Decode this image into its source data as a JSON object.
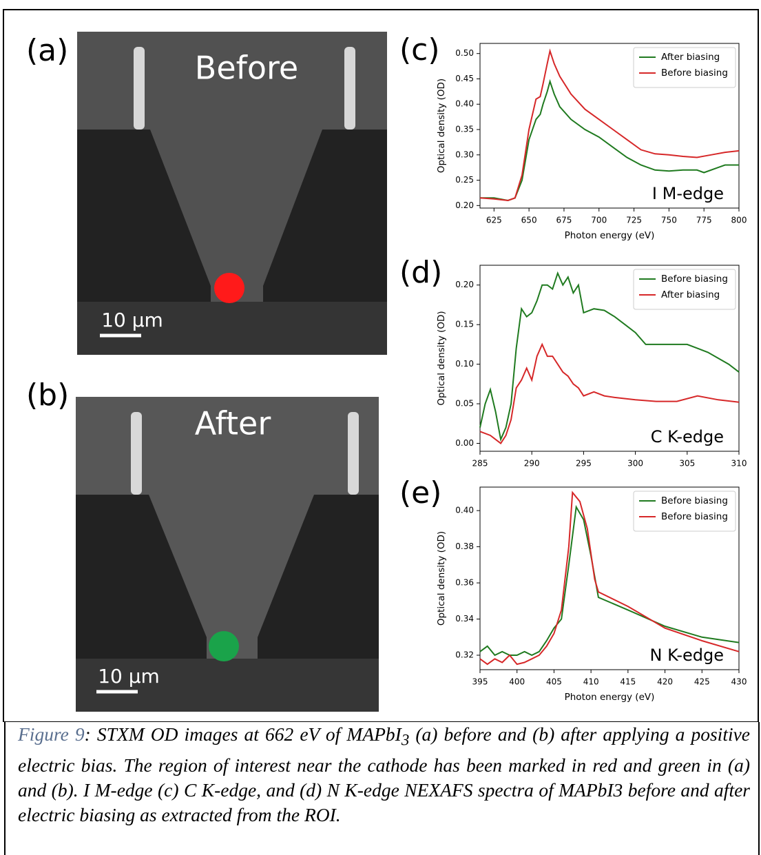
{
  "images": [
    {
      "panel_label": "(a)",
      "title": "Before",
      "scale": "10 µm"
    },
    {
      "panel_label": "(b)",
      "title": "After",
      "scale": "10 µm"
    }
  ],
  "chart_data": [
    {
      "type": "line",
      "panel_label": "(c)",
      "annotation": "I M-edge",
      "x_label": "Photon energy (eV)",
      "y_label": "Optical density (OD)",
      "xlim": [
        615,
        800
      ],
      "xticks": [
        625,
        650,
        675,
        700,
        725,
        750,
        775,
        800
      ],
      "ylim": [
        0.195,
        0.52
      ],
      "yticks": [
        {
          "value": 0.2,
          "label": "0.20"
        },
        0.25,
        {
          "value": 0.3,
          "label": "0.30"
        },
        0.35,
        {
          "value": 0.4,
          "label": "0.40"
        },
        0.45,
        {
          "value": 0.5,
          "label": "0.50"
        }
      ],
      "series": [
        {
          "name": "After biasing",
          "color": "#1f7a1f",
          "x": [
            615,
            625,
            635,
            640,
            645,
            650,
            655,
            658,
            660,
            663,
            665,
            668,
            672,
            680,
            690,
            700,
            710,
            720,
            730,
            740,
            750,
            760,
            770,
            775,
            785,
            790,
            800
          ],
          "values": [
            0.215,
            0.215,
            0.21,
            0.215,
            0.25,
            0.33,
            0.37,
            0.38,
            0.4,
            0.425,
            0.445,
            0.42,
            0.395,
            0.37,
            0.35,
            0.335,
            0.315,
            0.295,
            0.28,
            0.27,
            0.268,
            0.27,
            0.27,
            0.265,
            0.275,
            0.28,
            0.28
          ]
        },
        {
          "name": "Before biasing",
          "color": "#d62728",
          "x": [
            615,
            625,
            635,
            640,
            645,
            650,
            655,
            658,
            660,
            663,
            665,
            668,
            672,
            680,
            690,
            700,
            710,
            720,
            730,
            740,
            750,
            760,
            770,
            780,
            790,
            800
          ],
          "values": [
            0.215,
            0.213,
            0.21,
            0.215,
            0.26,
            0.35,
            0.41,
            0.415,
            0.44,
            0.48,
            0.505,
            0.48,
            0.455,
            0.42,
            0.39,
            0.37,
            0.35,
            0.33,
            0.31,
            0.302,
            0.3,
            0.297,
            0.295,
            0.3,
            0.305,
            0.308
          ]
        }
      ]
    },
    {
      "type": "line",
      "panel_label": "(d)",
      "annotation": "C K-edge",
      "y_label": "Optical density (OD)",
      "xlim": [
        285,
        310
      ],
      "xticks": [
        285,
        290,
        295,
        300,
        305,
        310
      ],
      "ylim": [
        -0.01,
        0.225
      ],
      "yticks": [
        {
          "value": 0,
          "label": "0.00"
        },
        0.05,
        {
          "value": 0.1,
          "label": "0.10"
        },
        0.15,
        {
          "value": 0.2,
          "label": "0.20"
        }
      ],
      "series": [
        {
          "name": "Before biasing",
          "color": "#1f7a1f",
          "x": [
            285,
            285.5,
            286,
            286.5,
            287,
            287.5,
            288,
            288.5,
            289,
            289.5,
            290,
            290.5,
            291,
            291.5,
            292,
            292.5,
            293,
            293.5,
            294,
            294.5,
            295,
            296,
            297,
            298,
            299,
            300,
            301,
            303,
            305,
            307,
            309,
            310
          ],
          "values": [
            0.02,
            0.05,
            0.068,
            0.04,
            0.005,
            0.02,
            0.05,
            0.12,
            0.17,
            0.16,
            0.165,
            0.18,
            0.2,
            0.2,
            0.195,
            0.215,
            0.2,
            0.21,
            0.19,
            0.2,
            0.165,
            0.17,
            0.168,
            0.16,
            0.15,
            0.14,
            0.125,
            0.125,
            0.125,
            0.115,
            0.1,
            0.09
          ]
        },
        {
          "name": "After biasing",
          "color": "#d62728",
          "x": [
            285,
            286,
            286.5,
            287,
            287.5,
            288,
            288.5,
            289,
            289.5,
            290,
            290.5,
            291,
            291.5,
            292,
            292.5,
            293,
            293.5,
            294,
            294.5,
            295,
            296,
            297,
            298,
            300,
            302,
            304,
            306,
            308,
            310
          ],
          "values": [
            0.015,
            0.01,
            0.005,
            0,
            0.01,
            0.03,
            0.07,
            0.08,
            0.095,
            0.08,
            0.11,
            0.125,
            0.11,
            0.11,
            0.1,
            0.09,
            0.085,
            0.075,
            0.07,
            0.06,
            0.065,
            0.06,
            0.058,
            0.055,
            0.053,
            0.053,
            0.06,
            0.055,
            0.052
          ]
        }
      ]
    },
    {
      "type": "line",
      "panel_label": "(e)",
      "annotation": "N K-edge",
      "x_label": "Photon energy (eV)",
      "y_label": "Optical density (OD)",
      "xlim": [
        395,
        430
      ],
      "xticks": [
        395,
        400,
        405,
        410,
        415,
        420,
        425,
        430
      ],
      "ylim": [
        0.312,
        0.413
      ],
      "yticks": [
        0.32,
        0.34,
        0.36,
        0.38,
        {
          "value": 0.4,
          "label": "0.40"
        }
      ],
      "series": [
        {
          "name": "Before biasing",
          "color": "#1f7a1f",
          "x": [
            395,
            396,
            397,
            398,
            399,
            400,
            401,
            402,
            403,
            404,
            405,
            406,
            407,
            408,
            409,
            410,
            411,
            415,
            420,
            425,
            430
          ],
          "values": [
            0.322,
            0.325,
            0.32,
            0.322,
            0.32,
            0.32,
            0.322,
            0.32,
            0.322,
            0.328,
            0.335,
            0.34,
            0.37,
            0.402,
            0.395,
            0.375,
            0.352,
            0.345,
            0.336,
            0.33,
            0.327
          ]
        },
        {
          "name": "Before biasing",
          "color": "#d62728",
          "x": [
            395,
            396,
            397,
            398,
            399,
            400,
            401,
            402,
            403,
            404,
            405,
            406,
            407,
            407.5,
            408.5,
            409.5,
            410.5,
            411,
            415,
            420,
            425,
            430
          ],
          "values": [
            0.318,
            0.315,
            0.318,
            0.316,
            0.32,
            0.315,
            0.316,
            0.318,
            0.32,
            0.325,
            0.332,
            0.345,
            0.38,
            0.41,
            0.405,
            0.39,
            0.362,
            0.355,
            0.347,
            0.335,
            0.328,
            0.322
          ]
        }
      ]
    }
  ],
  "caption": {
    "label": "Figure 9",
    "text_start": ": STXM OD images at 662 eV of MAPbI",
    "subscript": "3",
    "text_end": " (a) before and (b) after applying a positive electric bias. The region of interest near the cathode has been marked in red and green in (a) and (b). I M-edge (c) C K-edge, and (d) N K-edge NEXAFS spectra of MAPbI3 before and after electric biasing as extracted from the ROI."
  }
}
